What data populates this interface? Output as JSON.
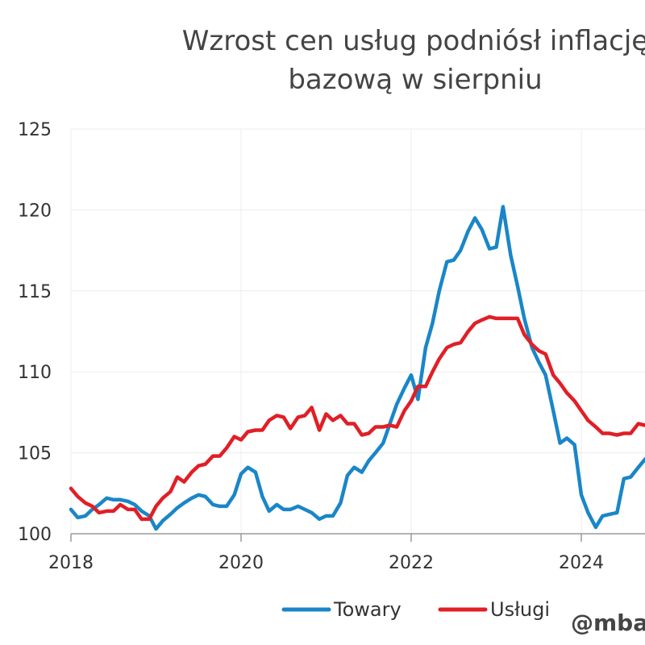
{
  "chart_data": {
    "type": "line",
    "title_lines": [
      "Wzrost cen usług podniósł inflację",
      "bazową w sierpniu"
    ],
    "xlabel": "",
    "ylabel": "",
    "xlim": [
      2018,
      2025.5
    ],
    "ylim": [
      100,
      125
    ],
    "x_ticks": [
      2018,
      2020,
      2022,
      2024
    ],
    "y_ticks": [
      100,
      105,
      110,
      115,
      120,
      125
    ],
    "grid": true,
    "legend_position": "bottom",
    "watermark": "@mba",
    "series": [
      {
        "name": "Towary",
        "color": "#1a86c8",
        "points": [
          [
            2018.0,
            101.5
          ],
          [
            2018.08,
            101.0
          ],
          [
            2018.17,
            101.1
          ],
          [
            2018.25,
            101.5
          ],
          [
            2018.33,
            101.8
          ],
          [
            2018.42,
            102.2
          ],
          [
            2018.5,
            102.1
          ],
          [
            2018.58,
            102.1
          ],
          [
            2018.67,
            102.0
          ],
          [
            2018.75,
            101.8
          ],
          [
            2018.83,
            101.4
          ],
          [
            2018.92,
            101.1
          ],
          [
            2019.0,
            100.3
          ],
          [
            2019.08,
            100.8
          ],
          [
            2019.17,
            101.2
          ],
          [
            2019.25,
            101.6
          ],
          [
            2019.33,
            101.9
          ],
          [
            2019.42,
            102.2
          ],
          [
            2019.5,
            102.4
          ],
          [
            2019.58,
            102.3
          ],
          [
            2019.67,
            101.8
          ],
          [
            2019.75,
            101.7
          ],
          [
            2019.83,
            101.7
          ],
          [
            2019.92,
            102.4
          ],
          [
            2020.0,
            103.7
          ],
          [
            2020.08,
            104.1
          ],
          [
            2020.17,
            103.8
          ],
          [
            2020.25,
            102.3
          ],
          [
            2020.33,
            101.4
          ],
          [
            2020.42,
            101.8
          ],
          [
            2020.5,
            101.5
          ],
          [
            2020.58,
            101.5
          ],
          [
            2020.67,
            101.7
          ],
          [
            2020.75,
            101.5
          ],
          [
            2020.83,
            101.3
          ],
          [
            2020.92,
            100.9
          ],
          [
            2021.0,
            101.1
          ],
          [
            2021.08,
            101.1
          ],
          [
            2021.17,
            101.9
          ],
          [
            2021.25,
            103.6
          ],
          [
            2021.33,
            104.1
          ],
          [
            2021.42,
            103.8
          ],
          [
            2021.5,
            104.5
          ],
          [
            2021.58,
            105.0
          ],
          [
            2021.67,
            105.6
          ],
          [
            2021.75,
            106.8
          ],
          [
            2021.83,
            108.0
          ],
          [
            2021.92,
            109.0
          ],
          [
            2022.0,
            109.8
          ],
          [
            2022.08,
            108.3
          ],
          [
            2022.17,
            111.5
          ],
          [
            2022.25,
            113.0
          ],
          [
            2022.33,
            115.0
          ],
          [
            2022.42,
            116.8
          ],
          [
            2022.5,
            116.9
          ],
          [
            2022.58,
            117.5
          ],
          [
            2022.67,
            118.7
          ],
          [
            2022.75,
            119.5
          ],
          [
            2022.83,
            118.8
          ],
          [
            2022.92,
            117.6
          ],
          [
            2023.0,
            117.7
          ],
          [
            2023.08,
            120.2
          ],
          [
            2023.17,
            117.2
          ],
          [
            2023.25,
            115.3
          ],
          [
            2023.33,
            113.3
          ],
          [
            2023.42,
            111.5
          ],
          [
            2023.5,
            110.6
          ],
          [
            2023.58,
            109.8
          ],
          [
            2023.67,
            107.6
          ],
          [
            2023.75,
            105.6
          ],
          [
            2023.83,
            105.9
          ],
          [
            2023.92,
            105.5
          ],
          [
            2024.0,
            102.4
          ],
          [
            2024.08,
            101.3
          ],
          [
            2024.17,
            100.4
          ],
          [
            2024.25,
            101.1
          ],
          [
            2024.33,
            101.2
          ],
          [
            2024.42,
            101.3
          ],
          [
            2024.5,
            103.4
          ],
          [
            2024.58,
            103.5
          ],
          [
            2024.67,
            104.1
          ],
          [
            2024.75,
            104.6
          ],
          [
            2024.83,
            105.0
          ],
          [
            2024.92,
            105.2
          ]
        ]
      },
      {
        "name": "Usługi",
        "color": "#e01f26",
        "points": [
          [
            2018.0,
            102.8
          ],
          [
            2018.08,
            102.3
          ],
          [
            2018.17,
            101.9
          ],
          [
            2018.25,
            101.7
          ],
          [
            2018.33,
            101.3
          ],
          [
            2018.42,
            101.4
          ],
          [
            2018.5,
            101.4
          ],
          [
            2018.58,
            101.8
          ],
          [
            2018.67,
            101.5
          ],
          [
            2018.75,
            101.5
          ],
          [
            2018.83,
            100.9
          ],
          [
            2018.92,
            100.9
          ],
          [
            2019.0,
            101.7
          ],
          [
            2019.08,
            102.2
          ],
          [
            2019.17,
            102.6
          ],
          [
            2019.25,
            103.5
          ],
          [
            2019.33,
            103.2
          ],
          [
            2019.42,
            103.8
          ],
          [
            2019.5,
            104.2
          ],
          [
            2019.58,
            104.3
          ],
          [
            2019.67,
            104.8
          ],
          [
            2019.75,
            104.8
          ],
          [
            2019.83,
            105.3
          ],
          [
            2019.92,
            106.0
          ],
          [
            2020.0,
            105.8
          ],
          [
            2020.08,
            106.3
          ],
          [
            2020.17,
            106.4
          ],
          [
            2020.25,
            106.4
          ],
          [
            2020.33,
            107.0
          ],
          [
            2020.42,
            107.3
          ],
          [
            2020.5,
            107.2
          ],
          [
            2020.58,
            106.5
          ],
          [
            2020.67,
            107.2
          ],
          [
            2020.75,
            107.3
          ],
          [
            2020.83,
            107.8
          ],
          [
            2020.92,
            106.4
          ],
          [
            2021.0,
            107.4
          ],
          [
            2021.08,
            107.0
          ],
          [
            2021.17,
            107.3
          ],
          [
            2021.25,
            106.8
          ],
          [
            2021.33,
            106.8
          ],
          [
            2021.42,
            106.1
          ],
          [
            2021.5,
            106.2
          ],
          [
            2021.58,
            106.6
          ],
          [
            2021.67,
            106.6
          ],
          [
            2021.75,
            106.7
          ],
          [
            2021.83,
            106.6
          ],
          [
            2021.92,
            107.6
          ],
          [
            2022.0,
            108.2
          ],
          [
            2022.08,
            109.1
          ],
          [
            2022.17,
            109.1
          ],
          [
            2022.25,
            110.0
          ],
          [
            2022.33,
            110.8
          ],
          [
            2022.42,
            111.5
          ],
          [
            2022.5,
            111.7
          ],
          [
            2022.58,
            111.8
          ],
          [
            2022.67,
            112.5
          ],
          [
            2022.75,
            113.0
          ],
          [
            2022.83,
            113.2
          ],
          [
            2022.92,
            113.4
          ],
          [
            2023.0,
            113.3
          ],
          [
            2023.08,
            113.3
          ],
          [
            2023.17,
            113.3
          ],
          [
            2023.25,
            113.3
          ],
          [
            2023.33,
            112.3
          ],
          [
            2023.42,
            111.7
          ],
          [
            2023.5,
            111.3
          ],
          [
            2023.58,
            111.1
          ],
          [
            2023.67,
            109.8
          ],
          [
            2023.75,
            109.3
          ],
          [
            2023.83,
            108.7
          ],
          [
            2023.92,
            108.2
          ],
          [
            2024.0,
            107.6
          ],
          [
            2024.08,
            107.0
          ],
          [
            2024.17,
            106.6
          ],
          [
            2024.25,
            106.2
          ],
          [
            2024.33,
            106.2
          ],
          [
            2024.42,
            106.1
          ],
          [
            2024.5,
            106.2
          ],
          [
            2024.58,
            106.2
          ],
          [
            2024.67,
            106.8
          ],
          [
            2024.75,
            106.7
          ],
          [
            2024.83,
            106.9
          ],
          [
            2024.92,
            107.0
          ]
        ]
      }
    ]
  }
}
